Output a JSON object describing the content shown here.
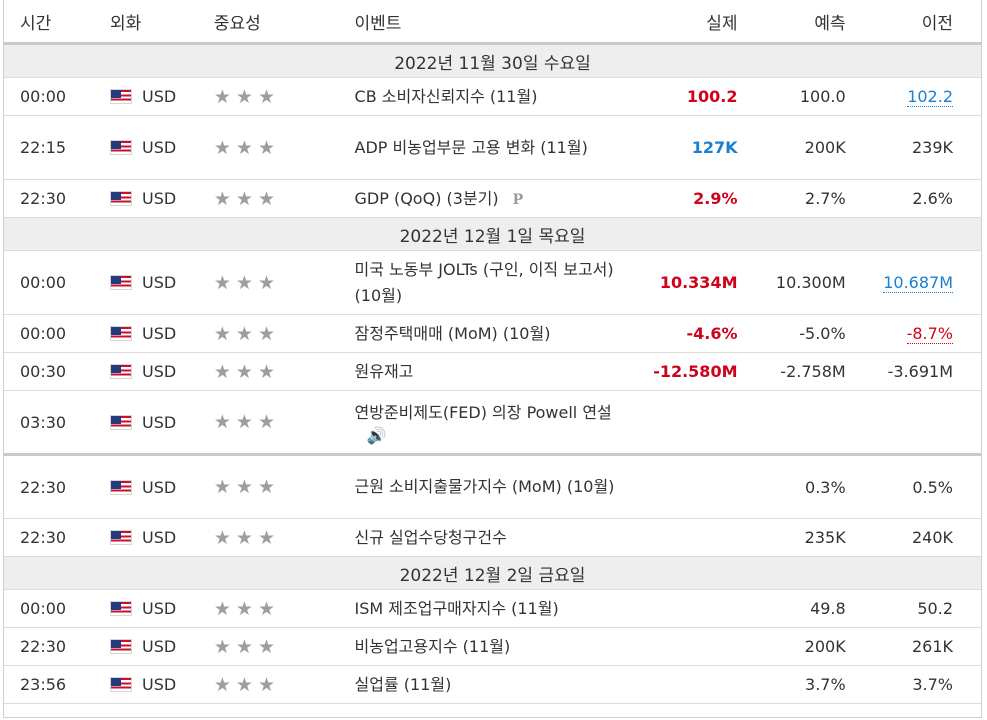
{
  "headers": {
    "time": "시간",
    "currency": "외화",
    "importance": "중요성",
    "event": "이벤트",
    "actual": "실제",
    "forecast": "예측",
    "previous": "이전"
  },
  "colors": {
    "red": "#d0021b",
    "blue": "#1a7fd1",
    "star": "#9e9e9e"
  },
  "groups": [
    {
      "date": "2022년 11월 30일 수요일",
      "rows": [
        {
          "time": "00:00",
          "currency": "USD",
          "stars": 3,
          "event": "CB 소비자신뢰지수 (11월)",
          "actual": "100.2",
          "actual_color": "red",
          "forecast": "100.0",
          "previous": "102.2",
          "previous_color": "blue",
          "previous_link": true
        },
        {
          "time": "22:15",
          "currency": "USD",
          "stars": 3,
          "event": "ADP 비농업부문 고용 변화 (11월)",
          "actual": "127K",
          "actual_color": "blue",
          "forecast": "200K",
          "previous": "239K"
        },
        {
          "time": "22:30",
          "currency": "USD",
          "stars": 3,
          "event": "GDP (QoQ) (3분기)",
          "icon": "preliminary-p-icon",
          "actual": "2.9%",
          "actual_color": "red",
          "forecast": "2.7%",
          "previous": "2.6%"
        }
      ]
    },
    {
      "date": "2022년 12월 1일 목요일",
      "rows": [
        {
          "time": "00:00",
          "currency": "USD",
          "stars": 3,
          "event": "미국 노동부 JOLTs (구인, 이직 보고서) (10월)",
          "actual": "10.334M",
          "actual_color": "red",
          "forecast": "10.300M",
          "previous": "10.687M",
          "previous_color": "blue",
          "previous_link": true
        },
        {
          "time": "00:00",
          "currency": "USD",
          "stars": 3,
          "event": "잠정주택매매 (MoM) (10월)",
          "actual": "-4.6%",
          "actual_color": "red",
          "forecast": "-5.0%",
          "previous": "-8.7%",
          "previous_color": "red",
          "previous_link": true
        },
        {
          "time": "00:30",
          "currency": "USD",
          "stars": 3,
          "event": "원유재고",
          "actual": "-12.580M",
          "actual_color": "red",
          "forecast": "-2.758M",
          "previous": "-3.691M"
        },
        {
          "time": "03:30",
          "currency": "USD",
          "stars": 3,
          "event": "연방준비제도(FED) 의장 Powell 연설",
          "icon": "speaker-icon",
          "actual": "",
          "forecast": "",
          "previous": "",
          "thick": true
        },
        {
          "time": "22:30",
          "currency": "USD",
          "stars": 3,
          "event": "근원 소비지출물가지수 (MoM) (10월)",
          "actual": "",
          "forecast": "0.3%",
          "previous": "0.5%"
        },
        {
          "time": "22:30",
          "currency": "USD",
          "stars": 3,
          "event": "신규 실업수당청구건수",
          "actual": "",
          "forecast": "235K",
          "previous": "240K"
        }
      ]
    },
    {
      "date": "2022년 12월 2일 금요일",
      "rows": [
        {
          "time": "00:00",
          "currency": "USD",
          "stars": 3,
          "event": "ISM 제조업구매자지수 (11월)",
          "actual": "",
          "forecast": "49.8",
          "previous": "50.2"
        },
        {
          "time": "22:30",
          "currency": "USD",
          "stars": 3,
          "event": "비농업고용지수 (11월)",
          "actual": "",
          "forecast": "200K",
          "previous": "261K"
        },
        {
          "time": "23:56",
          "currency": "USD",
          "stars": 3,
          "event": "실업률 (11월)",
          "actual": "",
          "forecast": "3.7%",
          "previous": "3.7%"
        }
      ]
    }
  ]
}
